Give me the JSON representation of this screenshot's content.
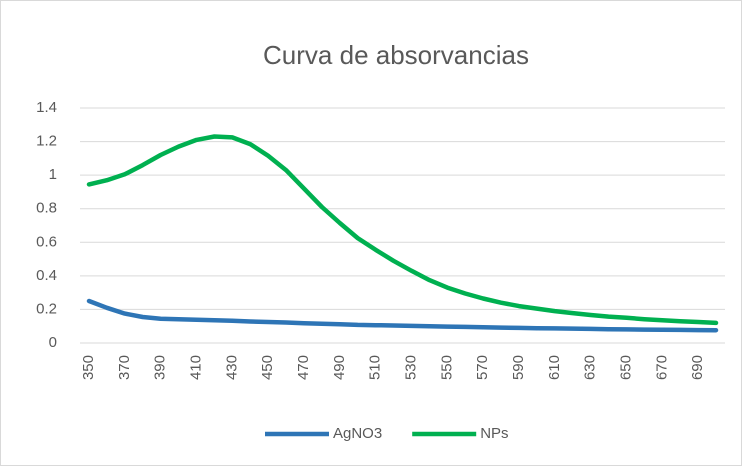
{
  "chart_data": {
    "type": "line",
    "title": "Curva de absorvancias",
    "categories": [
      350,
      null,
      370,
      null,
      390,
      null,
      410,
      null,
      430,
      null,
      450,
      null,
      470,
      null,
      490,
      null,
      510,
      null,
      530,
      null,
      550,
      null,
      570,
      null,
      590,
      null,
      610,
      null,
      630,
      null,
      650,
      null,
      670,
      null,
      690,
      null
    ],
    "series": [
      {
        "name": "AgNO3",
        "color": "#2e75b6",
        "values": [
          0.25,
          0.21,
          0.175,
          0.155,
          0.145,
          0.142,
          0.138,
          0.135,
          0.132,
          0.128,
          0.125,
          0.122,
          0.118,
          0.115,
          0.112,
          0.108,
          0.106,
          0.104,
          0.102,
          0.1,
          0.098,
          0.096,
          0.094,
          0.092,
          0.09,
          0.088,
          0.087,
          0.086,
          0.084,
          0.082,
          0.081,
          0.08,
          0.079,
          0.078,
          0.077,
          0.076
        ]
      },
      {
        "name": "NPs",
        "color": "#00b050",
        "values": [
          0.945,
          0.97,
          1.005,
          1.06,
          1.12,
          1.17,
          1.21,
          1.23,
          1.225,
          1.185,
          1.115,
          1.03,
          0.92,
          0.81,
          0.715,
          0.625,
          0.555,
          0.49,
          0.43,
          0.375,
          0.33,
          0.295,
          0.265,
          0.24,
          0.22,
          0.205,
          0.19,
          0.178,
          0.167,
          0.157,
          0.15,
          0.142,
          0.135,
          0.13,
          0.125,
          0.12
        ]
      }
    ],
    "ylim": [
      0,
      1.4
    ],
    "yticks": [
      0,
      0.2,
      0.4,
      0.6,
      0.8,
      1,
      1.2,
      1.4
    ],
    "grid": true,
    "legend": "bottom"
  }
}
